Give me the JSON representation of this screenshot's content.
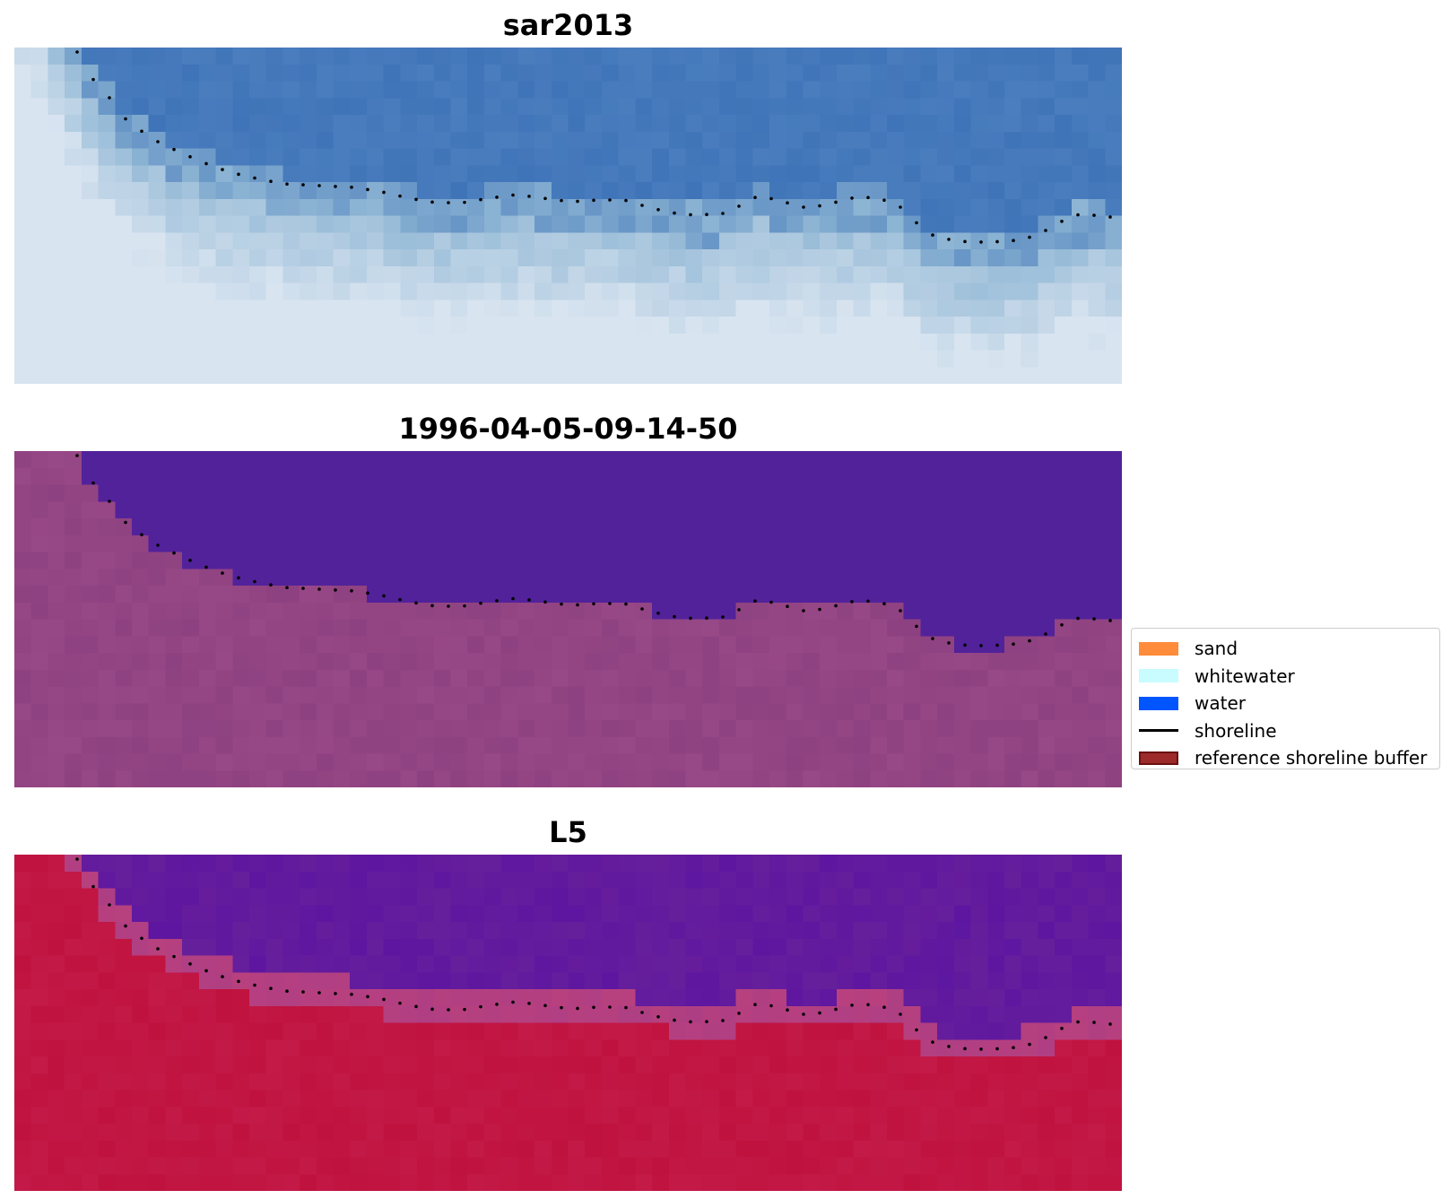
{
  "panels": [
    {
      "title": "sar2013",
      "style": "rgb",
      "colors": {
        "water": "#3f74b8",
        "land": "#d8e4f0",
        "shore": "#8fb6d4"
      }
    },
    {
      "title": "1996-04-05-09-14-50",
      "style": "classified",
      "colors": {
        "water": "#52229a",
        "land": "#9a4a88",
        "shore": "#8b3f7e"
      }
    },
    {
      "title": "L5",
      "style": "ndwi",
      "colors": {
        "water": "#5e16a0",
        "land": "#c0123e",
        "shore": "#b8407e"
      }
    }
  ],
  "legend": {
    "items": [
      {
        "label": "sand",
        "color": "#ff8c3a",
        "kind": "patch"
      },
      {
        "label": "whitewater",
        "color": "#c8fcff",
        "kind": "patch"
      },
      {
        "label": "water",
        "color": "#0055ff",
        "kind": "patch"
      },
      {
        "label": "shoreline",
        "color": "#000000",
        "kind": "line"
      },
      {
        "label": "reference shoreline buffer",
        "color": "#9c2a2a",
        "kind": "patch",
        "edge": "#6a0f0f"
      }
    ]
  }
}
